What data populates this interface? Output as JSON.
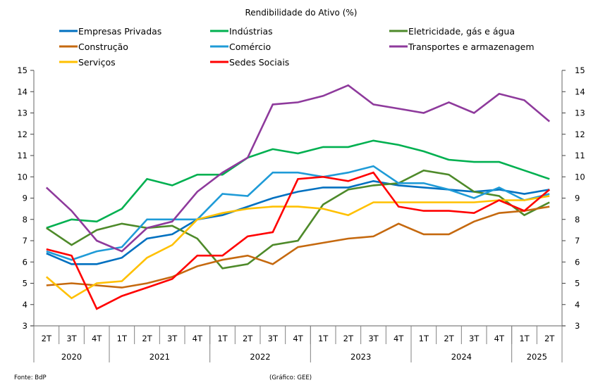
{
  "chart_data": {
    "type": "line",
    "title": "Rendibilidade do Ativo (%)",
    "xlabel": "",
    "ylabel": "",
    "ylim": [
      3,
      15
    ],
    "yticks": [
      3,
      4,
      5,
      6,
      7,
      8,
      9,
      10,
      11,
      12,
      13,
      14,
      15
    ],
    "grid": false,
    "legend_position": "top",
    "categories": [
      "2T",
      "3T",
      "4T",
      "1T",
      "2T",
      "3T",
      "4T",
      "1T",
      "2T",
      "3T",
      "4T",
      "1T",
      "2T",
      "3T",
      "4T",
      "1T",
      "2T",
      "3T",
      "4T",
      "1T",
      "2T"
    ],
    "year_groups": [
      {
        "label": "2020",
        "count": 3
      },
      {
        "label": "2021",
        "count": 4
      },
      {
        "label": "2022",
        "count": 4
      },
      {
        "label": "2023",
        "count": 4
      },
      {
        "label": "2024",
        "count": 4
      },
      {
        "label": "2025",
        "count": 2
      }
    ],
    "series": [
      {
        "name": "Empresas Privadas",
        "color": "#0070C0",
        "values": [
          6.4,
          5.9,
          5.9,
          6.2,
          7.1,
          7.3,
          8.0,
          8.2,
          8.6,
          9.0,
          9.3,
          9.5,
          9.5,
          9.8,
          9.6,
          9.5,
          9.4,
          9.3,
          9.4,
          9.2,
          9.4
        ]
      },
      {
        "name": "Indústrias",
        "color": "#00B050",
        "values": [
          7.6,
          8.0,
          7.9,
          8.5,
          9.9,
          9.6,
          10.1,
          10.1,
          10.9,
          11.3,
          11.1,
          11.4,
          11.4,
          11.7,
          11.5,
          11.2,
          10.8,
          10.7,
          10.7,
          10.3,
          9.9
        ]
      },
      {
        "name": "Eletricidade, gás e água",
        "color": "#4E8A2A",
        "values": [
          7.6,
          6.8,
          7.5,
          7.8,
          7.6,
          7.7,
          7.1,
          5.7,
          5.9,
          6.8,
          7.0,
          8.7,
          9.4,
          9.6,
          9.7,
          10.3,
          10.1,
          9.3,
          9.1,
          8.2,
          8.8
        ]
      },
      {
        "name": "Construção",
        "color": "#C5690F",
        "values": [
          4.9,
          5.0,
          4.9,
          4.8,
          5.0,
          5.3,
          5.8,
          6.1,
          6.3,
          5.9,
          6.7,
          6.9,
          7.1,
          7.2,
          7.8,
          7.3,
          7.3,
          7.9,
          8.3,
          8.4,
          8.6
        ]
      },
      {
        "name": "Comércio",
        "color": "#1F9BD7",
        "values": [
          6.5,
          6.1,
          6.5,
          6.7,
          8.0,
          8.0,
          8.0,
          9.2,
          9.1,
          10.2,
          10.2,
          10.0,
          10.2,
          10.5,
          9.7,
          9.7,
          9.4,
          9.0,
          9.5,
          8.9,
          9.2
        ]
      },
      {
        "name": "Transportes e armazenagem",
        "color": "#8E3A9C",
        "values": [
          9.5,
          8.4,
          7.0,
          6.5,
          7.6,
          7.9,
          9.3,
          10.2,
          10.9,
          13.4,
          13.5,
          13.8,
          14.3,
          13.4,
          13.2,
          13.0,
          13.5,
          13.0,
          13.9,
          13.6,
          12.6
        ]
      },
      {
        "name": "Serviços",
        "color": "#FFC000",
        "values": [
          5.3,
          4.3,
          5.0,
          5.1,
          6.2,
          6.8,
          8.0,
          8.3,
          8.5,
          8.6,
          8.6,
          8.5,
          8.2,
          8.8,
          8.8,
          8.8,
          8.8,
          8.8,
          8.9,
          8.9,
          9.1
        ]
      },
      {
        "name": "Sedes Sociais",
        "color": "#FF0000",
        "values": [
          6.6,
          6.3,
          3.8,
          4.4,
          4.8,
          5.2,
          6.3,
          6.3,
          7.2,
          7.4,
          9.9,
          10.0,
          9.8,
          10.2,
          8.6,
          8.4,
          8.4,
          8.3,
          8.9,
          8.4,
          9.4
        ]
      }
    ]
  },
  "footer": {
    "source": "Fonte: BdP",
    "credit": "(Gráfico: GEE)"
  }
}
